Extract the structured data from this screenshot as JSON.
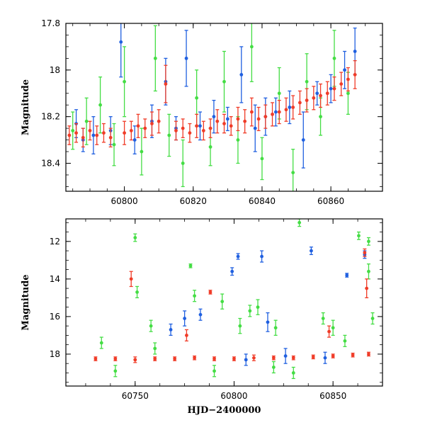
{
  "chart_data": [
    {
      "type": "scatter",
      "title": "",
      "xlabel": "",
      "ylabel": "Magnitude",
      "xlim": [
        60783,
        60875
      ],
      "ylim": [
        18.52,
        17.8
      ],
      "y_inverted": true,
      "x_ticks": [
        60800,
        60820,
        60840,
        60860
      ],
      "x_tick_labels": [
        "60800",
        "60820",
        "60840",
        "60860"
      ],
      "y_ticks": [
        17.8,
        18,
        18.2,
        18.4
      ],
      "y_tick_labels": [
        "17.8",
        "18",
        "18.2",
        "18.4"
      ],
      "grid": false,
      "legend": "none",
      "series": [
        {
          "color": "#2060e0",
          "values": [
            {
              "x": 60786,
              "y": 18.23,
              "err": 0.06
            },
            {
              "x": 60788,
              "y": 18.3,
              "err": 0.05
            },
            {
              "x": 60791,
              "y": 18.28,
              "err": 0.08
            },
            {
              "x": 60796,
              "y": 18.26,
              "err": 0.06
            },
            {
              "x": 60799,
              "y": 17.88,
              "err": 0.15
            },
            {
              "x": 60803,
              "y": 18.3,
              "err": 0.06
            },
            {
              "x": 60808,
              "y": 18.22,
              "err": 0.07
            },
            {
              "x": 60812,
              "y": 18.05,
              "err": 0.1
            },
            {
              "x": 60815,
              "y": 18.25,
              "err": 0.05
            },
            {
              "x": 60818,
              "y": 17.95,
              "err": 0.12
            },
            {
              "x": 60822,
              "y": 18.24,
              "err": 0.06
            },
            {
              "x": 60826,
              "y": 18.2,
              "err": 0.07
            },
            {
              "x": 60830,
              "y": 18.21,
              "err": 0.05
            },
            {
              "x": 60834,
              "y": 18.02,
              "err": 0.12
            },
            {
              "x": 60838,
              "y": 18.25,
              "err": 0.1
            },
            {
              "x": 60841,
              "y": 18.2,
              "err": 0.08
            },
            {
              "x": 60844,
              "y": 18.18,
              "err": 0.06
            },
            {
              "x": 60848,
              "y": 18.16,
              "err": 0.07
            },
            {
              "x": 60852,
              "y": 18.3,
              "err": 0.12
            },
            {
              "x": 60856,
              "y": 18.1,
              "err": 0.05
            },
            {
              "x": 60860,
              "y": 18.08,
              "err": 0.06
            },
            {
              "x": 60864,
              "y": 18.0,
              "err": 0.08
            },
            {
              "x": 60867,
              "y": 17.92,
              "err": 0.1
            }
          ]
        },
        {
          "color": "#44dd44",
          "values": [
            {
              "x": 60785,
              "y": 18.26,
              "err": 0.08
            },
            {
              "x": 60789,
              "y": 18.22,
              "err": 0.1
            },
            {
              "x": 60793,
              "y": 18.15,
              "err": 0.12
            },
            {
              "x": 60797,
              "y": 18.32,
              "err": 0.09
            },
            {
              "x": 60800,
              "y": 18.05,
              "err": 0.15
            },
            {
              "x": 60805,
              "y": 18.35,
              "err": 0.1
            },
            {
              "x": 60809,
              "y": 17.95,
              "err": 0.14
            },
            {
              "x": 60813,
              "y": 18.28,
              "err": 0.09
            },
            {
              "x": 60817,
              "y": 18.4,
              "err": 0.1
            },
            {
              "x": 60821,
              "y": 18.12,
              "err": 0.12
            },
            {
              "x": 60825,
              "y": 18.33,
              "err": 0.08
            },
            {
              "x": 60829,
              "y": 18.05,
              "err": 0.13
            },
            {
              "x": 60833,
              "y": 18.3,
              "err": 0.1
            },
            {
              "x": 60837,
              "y": 17.9,
              "err": 0.15
            },
            {
              "x": 60840,
              "y": 18.38,
              "err": 0.09
            },
            {
              "x": 60845,
              "y": 18.1,
              "err": 0.11
            },
            {
              "x": 60849,
              "y": 18.44,
              "err": 0.1
            },
            {
              "x": 60853,
              "y": 18.05,
              "err": 0.12
            },
            {
              "x": 60857,
              "y": 18.2,
              "err": 0.08
            },
            {
              "x": 60861,
              "y": 17.95,
              "err": 0.12
            },
            {
              "x": 60865,
              "y": 18.1,
              "err": 0.09
            }
          ]
        },
        {
          "color": "#f03c28",
          "values": [
            {
              "x": 60784,
              "y": 18.28,
              "err": 0.04
            },
            {
              "x": 60786,
              "y": 18.27,
              "err": 0.04
            },
            {
              "x": 60788,
              "y": 18.29,
              "err": 0.04
            },
            {
              "x": 60790,
              "y": 18.26,
              "err": 0.04
            },
            {
              "x": 60792,
              "y": 18.28,
              "err": 0.04
            },
            {
              "x": 60794,
              "y": 18.27,
              "err": 0.04
            },
            {
              "x": 60796,
              "y": 18.29,
              "err": 0.04
            },
            {
              "x": 60800,
              "y": 18.27,
              "err": 0.05
            },
            {
              "x": 60802,
              "y": 18.26,
              "err": 0.04
            },
            {
              "x": 60804,
              "y": 18.24,
              "err": 0.05
            },
            {
              "x": 60806,
              "y": 18.25,
              "err": 0.04
            },
            {
              "x": 60808,
              "y": 18.23,
              "err": 0.05
            },
            {
              "x": 60810,
              "y": 18.22,
              "err": 0.05
            },
            {
              "x": 60812,
              "y": 18.06,
              "err": 0.08
            },
            {
              "x": 60815,
              "y": 18.26,
              "err": 0.04
            },
            {
              "x": 60817,
              "y": 18.25,
              "err": 0.04
            },
            {
              "x": 60819,
              "y": 18.27,
              "err": 0.04
            },
            {
              "x": 60821,
              "y": 18.24,
              "err": 0.05
            },
            {
              "x": 60823,
              "y": 18.26,
              "err": 0.04
            },
            {
              "x": 60825,
              "y": 18.25,
              "err": 0.04
            },
            {
              "x": 60827,
              "y": 18.22,
              "err": 0.05
            },
            {
              "x": 60829,
              "y": 18.23,
              "err": 0.04
            },
            {
              "x": 60831,
              "y": 18.24,
              "err": 0.04
            },
            {
              "x": 60833,
              "y": 18.21,
              "err": 0.05
            },
            {
              "x": 60835,
              "y": 18.22,
              "err": 0.05
            },
            {
              "x": 60837,
              "y": 18.18,
              "err": 0.06
            },
            {
              "x": 60839,
              "y": 18.21,
              "err": 0.05
            },
            {
              "x": 60841,
              "y": 18.2,
              "err": 0.05
            },
            {
              "x": 60843,
              "y": 18.19,
              "err": 0.05
            },
            {
              "x": 60845,
              "y": 18.18,
              "err": 0.05
            },
            {
              "x": 60847,
              "y": 18.17,
              "err": 0.05
            },
            {
              "x": 60849,
              "y": 18.16,
              "err": 0.05
            },
            {
              "x": 60851,
              "y": 18.14,
              "err": 0.05
            },
            {
              "x": 60853,
              "y": 18.13,
              "err": 0.05
            },
            {
              "x": 60855,
              "y": 18.12,
              "err": 0.05
            },
            {
              "x": 60857,
              "y": 18.11,
              "err": 0.05
            },
            {
              "x": 60859,
              "y": 18.1,
              "err": 0.05
            },
            {
              "x": 60861,
              "y": 18.08,
              "err": 0.05
            },
            {
              "x": 60863,
              "y": 18.06,
              "err": 0.05
            },
            {
              "x": 60865,
              "y": 18.04,
              "err": 0.05
            },
            {
              "x": 60867,
              "y": 18.02,
              "err": 0.06
            }
          ]
        }
      ]
    },
    {
      "type": "scatter",
      "title": "",
      "xlabel": "HJD−2400000",
      "ylabel": "Magnitude",
      "xlim": [
        60715,
        60875
      ],
      "ylim": [
        19.7,
        10.8
      ],
      "y_inverted": true,
      "x_ticks": [
        60750,
        60800,
        60850
      ],
      "x_tick_labels": [
        "60750",
        "60800",
        "60850"
      ],
      "y_ticks": [
        12,
        14,
        16,
        18
      ],
      "y_tick_labels": [
        "12",
        "14",
        "16",
        "18"
      ],
      "grid": false,
      "legend": "none",
      "series": [
        {
          "color": "#2060e0",
          "values": [
            {
              "x": 60768,
              "y": 16.7,
              "err": 0.3
            },
            {
              "x": 60775,
              "y": 16.1,
              "err": 0.4
            },
            {
              "x": 60783,
              "y": 15.9,
              "err": 0.3
            },
            {
              "x": 60799,
              "y": 13.6,
              "err": 0.2
            },
            {
              "x": 60802,
              "y": 12.8,
              "err": 0.15
            },
            {
              "x": 60814,
              "y": 12.8,
              "err": 0.3
            },
            {
              "x": 60817,
              "y": 16.3,
              "err": 0.5
            },
            {
              "x": 60839,
              "y": 12.5,
              "err": 0.2
            },
            {
              "x": 60857,
              "y": 13.8,
              "err": 0.1
            },
            {
              "x": 60866,
              "y": 12.7,
              "err": 0.2
            },
            {
              "x": 60806,
              "y": 18.3,
              "err": 0.3
            },
            {
              "x": 60826,
              "y": 18.1,
              "err": 0.4
            },
            {
              "x": 60846,
              "y": 18.2,
              "err": 0.3
            }
          ]
        },
        {
          "color": "#44dd44",
          "values": [
            {
              "x": 60733,
              "y": 17.4,
              "err": 0.3
            },
            {
              "x": 60750,
              "y": 11.8,
              "err": 0.2
            },
            {
              "x": 60751,
              "y": 14.7,
              "err": 0.3
            },
            {
              "x": 60758,
              "y": 16.5,
              "err": 0.3
            },
            {
              "x": 60778,
              "y": 13.3,
              "err": 0.1
            },
            {
              "x": 60780,
              "y": 14.9,
              "err": 0.3
            },
            {
              "x": 60794,
              "y": 15.2,
              "err": 0.4
            },
            {
              "x": 60803,
              "y": 16.5,
              "err": 0.4
            },
            {
              "x": 60808,
              "y": 15.7,
              "err": 0.3
            },
            {
              "x": 60812,
              "y": 15.5,
              "err": 0.4
            },
            {
              "x": 60821,
              "y": 16.6,
              "err": 0.4
            },
            {
              "x": 60833,
              "y": 11.0,
              "err": 0.2
            },
            {
              "x": 60845,
              "y": 16.1,
              "err": 0.3
            },
            {
              "x": 60850,
              "y": 16.6,
              "err": 0.4
            },
            {
              "x": 60863,
              "y": 11.7,
              "err": 0.2
            },
            {
              "x": 60868,
              "y": 12.0,
              "err": 0.2
            },
            {
              "x": 60868,
              "y": 13.6,
              "err": 0.4
            },
            {
              "x": 60870,
              "y": 16.1,
              "err": 0.3
            },
            {
              "x": 60740,
              "y": 18.9,
              "err": 0.3
            },
            {
              "x": 60760,
              "y": 17.7,
              "err": 0.3
            },
            {
              "x": 60790,
              "y": 18.9,
              "err": 0.3
            },
            {
              "x": 60820,
              "y": 18.7,
              "err": 0.3
            },
            {
              "x": 60830,
              "y": 19.0,
              "err": 0.3
            },
            {
              "x": 60856,
              "y": 17.3,
              "err": 0.3
            }
          ]
        },
        {
          "color": "#f03c28",
          "values": [
            {
              "x": 60748,
              "y": 14.0,
              "err": 0.4
            },
            {
              "x": 60776,
              "y": 17.0,
              "err": 0.3
            },
            {
              "x": 60788,
              "y": 14.7,
              "err": 0.1
            },
            {
              "x": 60866,
              "y": 12.6,
              "err": 0.2
            },
            {
              "x": 60867,
              "y": 14.5,
              "err": 0.5
            },
            {
              "x": 60848,
              "y": 16.8,
              "err": 0.3
            },
            {
              "x": 60730,
              "y": 18.25,
              "err": 0.1
            },
            {
              "x": 60740,
              "y": 18.25,
              "err": 0.1
            },
            {
              "x": 60750,
              "y": 18.3,
              "err": 0.15
            },
            {
              "x": 60760,
              "y": 18.25,
              "err": 0.1
            },
            {
              "x": 60770,
              "y": 18.25,
              "err": 0.1
            },
            {
              "x": 60780,
              "y": 18.2,
              "err": 0.1
            },
            {
              "x": 60790,
              "y": 18.25,
              "err": 0.1
            },
            {
              "x": 60800,
              "y": 18.25,
              "err": 0.1
            },
            {
              "x": 60810,
              "y": 18.2,
              "err": 0.15
            },
            {
              "x": 60820,
              "y": 18.2,
              "err": 0.1
            },
            {
              "x": 60830,
              "y": 18.2,
              "err": 0.1
            },
            {
              "x": 60840,
              "y": 18.15,
              "err": 0.1
            },
            {
              "x": 60850,
              "y": 18.1,
              "err": 0.1
            },
            {
              "x": 60860,
              "y": 18.05,
              "err": 0.1
            },
            {
              "x": 60868,
              "y": 18.0,
              "err": 0.1
            }
          ]
        }
      ]
    }
  ]
}
